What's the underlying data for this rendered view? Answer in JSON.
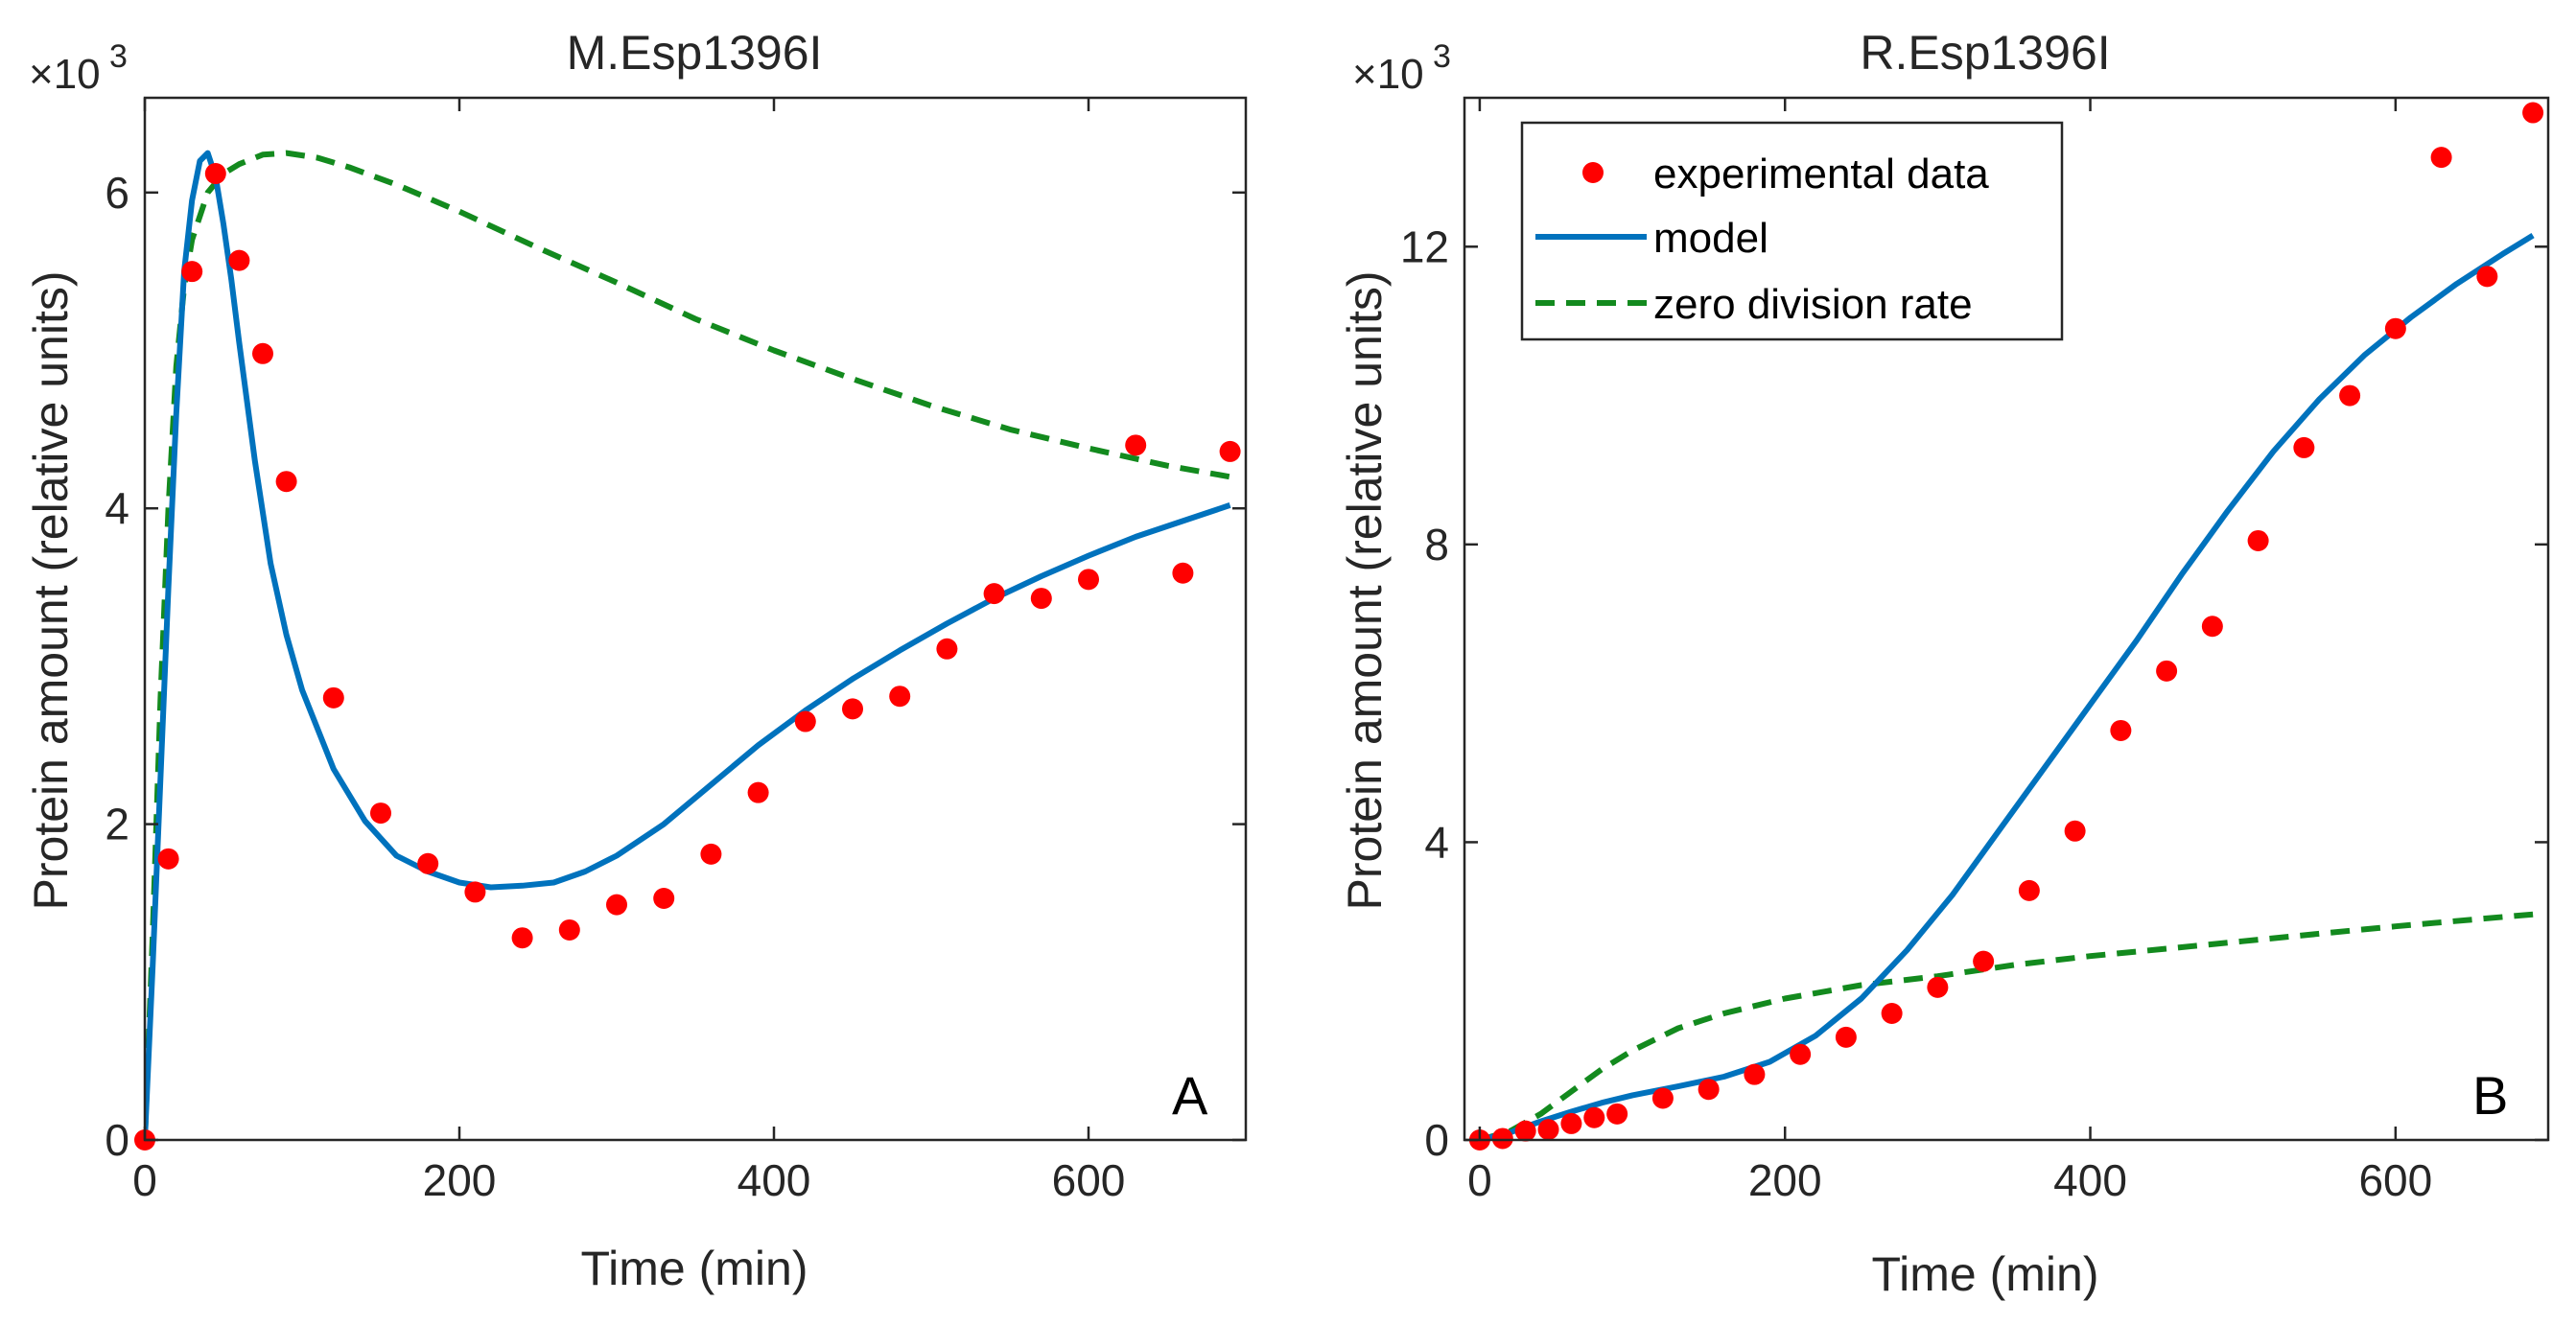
{
  "chart_data": [
    {
      "type": "scatter",
      "id": "A",
      "title": "M.Esp1396I",
      "xlabel": "Time (min)",
      "ylabel": "Protein amount (relative units)",
      "exponent_label": "×10",
      "exponent_power": "3",
      "panel_letter": "A",
      "xlim": [
        0,
        700
      ],
      "ylim": [
        0,
        6.6
      ],
      "xticks": [
        0,
        200,
        400,
        600
      ],
      "xtick_labels": [
        "0",
        "200",
        "400",
        "600"
      ],
      "yticks": [
        0,
        2,
        4,
        6
      ],
      "ytick_labels": [
        "0",
        "2",
        "4",
        "6"
      ],
      "series": [
        {
          "name": "experimental data",
          "kind": "points",
          "color": "#ff0000",
          "x": [
            0,
            15,
            30,
            45,
            60,
            75,
            90,
            120,
            150,
            180,
            210,
            240,
            270,
            300,
            330,
            360,
            390,
            420,
            450,
            480,
            510,
            540,
            570,
            600,
            630,
            660,
            690
          ],
          "y": [
            0,
            1.78,
            5.5,
            6.12,
            5.57,
            4.98,
            4.17,
            2.8,
            2.07,
            1.75,
            1.57,
            1.28,
            1.33,
            1.49,
            1.53,
            1.81,
            2.2,
            2.65,
            2.73,
            2.81,
            3.11,
            3.46,
            3.43,
            3.55,
            4.4,
            3.59,
            4.36
          ]
        },
        {
          "name": "model",
          "kind": "line",
          "color": "#0072bd",
          "x": [
            0,
            5,
            10,
            15,
            20,
            25,
            30,
            35,
            40,
            45,
            50,
            55,
            60,
            70,
            80,
            90,
            100,
            120,
            140,
            160,
            180,
            200,
            220,
            240,
            260,
            280,
            300,
            330,
            360,
            390,
            420,
            450,
            480,
            510,
            540,
            570,
            600,
            630,
            660,
            690
          ],
          "y": [
            0,
            1.1,
            2.3,
            3.5,
            4.6,
            5.5,
            5.95,
            6.2,
            6.25,
            6.1,
            5.8,
            5.45,
            5.05,
            4.3,
            3.65,
            3.2,
            2.85,
            2.35,
            2.02,
            1.8,
            1.7,
            1.63,
            1.6,
            1.61,
            1.63,
            1.7,
            1.8,
            2.0,
            2.25,
            2.5,
            2.72,
            2.92,
            3.1,
            3.27,
            3.43,
            3.57,
            3.7,
            3.82,
            3.92,
            4.02
          ]
        },
        {
          "name": "zero division rate",
          "kind": "dashed",
          "color": "#138a1e",
          "x": [
            0,
            5,
            10,
            15,
            20,
            25,
            30,
            40,
            50,
            60,
            75,
            90,
            110,
            130,
            160,
            200,
            250,
            300,
            350,
            400,
            450,
            500,
            550,
            600,
            650,
            690
          ],
          "y": [
            0,
            1.3,
            2.8,
            4.0,
            4.9,
            5.4,
            5.7,
            6.0,
            6.12,
            6.18,
            6.24,
            6.25,
            6.22,
            6.16,
            6.05,
            5.88,
            5.65,
            5.43,
            5.2,
            5.0,
            4.82,
            4.65,
            4.5,
            4.38,
            4.27,
            4.2
          ]
        }
      ]
    },
    {
      "type": "scatter",
      "id": "B",
      "title": "R.Esp1396I",
      "xlabel": "Time (min)",
      "ylabel": "Protein amount (relative units)",
      "exponent_label": "×10",
      "exponent_power": "3",
      "panel_letter": "B",
      "legend_position": "top-left",
      "xlim": [
        -10,
        700
      ],
      "ylim": [
        0,
        14
      ],
      "xticks": [
        0,
        200,
        400,
        600
      ],
      "xtick_labels": [
        "0",
        "200",
        "400",
        "600"
      ],
      "yticks": [
        0,
        4,
        8,
        12
      ],
      "ytick_labels": [
        "0",
        "4",
        "8",
        "12"
      ],
      "series": [
        {
          "name": "experimental data",
          "kind": "points",
          "color": "#ff0000",
          "x": [
            0,
            15,
            30,
            45,
            60,
            75,
            90,
            120,
            150,
            180,
            210,
            240,
            270,
            300,
            330,
            360,
            390,
            420,
            450,
            480,
            510,
            540,
            570,
            600,
            630,
            660,
            690
          ],
          "y": [
            0,
            0.02,
            0.12,
            0.14,
            0.22,
            0.3,
            0.35,
            0.56,
            0.68,
            0.88,
            1.15,
            1.38,
            1.7,
            2.05,
            2.4,
            3.35,
            4.15,
            5.5,
            6.3,
            6.9,
            8.05,
            9.3,
            10.0,
            10.9,
            13.2,
            11.6,
            13.8
          ]
        },
        {
          "name": "model",
          "kind": "line",
          "color": "#0072bd",
          "x": [
            0,
            20,
            40,
            60,
            80,
            100,
            130,
            160,
            190,
            220,
            250,
            280,
            310,
            340,
            370,
            400,
            430,
            460,
            490,
            520,
            550,
            580,
            610,
            640,
            670,
            690
          ],
          "y": [
            0,
            0.1,
            0.25,
            0.38,
            0.5,
            0.6,
            0.72,
            0.85,
            1.05,
            1.4,
            1.9,
            2.55,
            3.3,
            4.15,
            5.0,
            5.85,
            6.7,
            7.6,
            8.45,
            9.25,
            9.95,
            10.55,
            11.05,
            11.5,
            11.9,
            12.15
          ]
        },
        {
          "name": "zero division rate",
          "kind": "dashed",
          "color": "#138a1e",
          "x": [
            0,
            20,
            40,
            60,
            80,
            100,
            130,
            160,
            200,
            250,
            300,
            350,
            400,
            450,
            500,
            550,
            600,
            650,
            690
          ],
          "y": [
            0,
            0.12,
            0.35,
            0.65,
            0.95,
            1.2,
            1.5,
            1.7,
            1.9,
            2.08,
            2.2,
            2.35,
            2.47,
            2.57,
            2.67,
            2.77,
            2.87,
            2.96,
            3.03
          ]
        }
      ],
      "legend": {
        "entries": [
          "experimental data",
          "model",
          "zero division rate"
        ]
      }
    }
  ]
}
